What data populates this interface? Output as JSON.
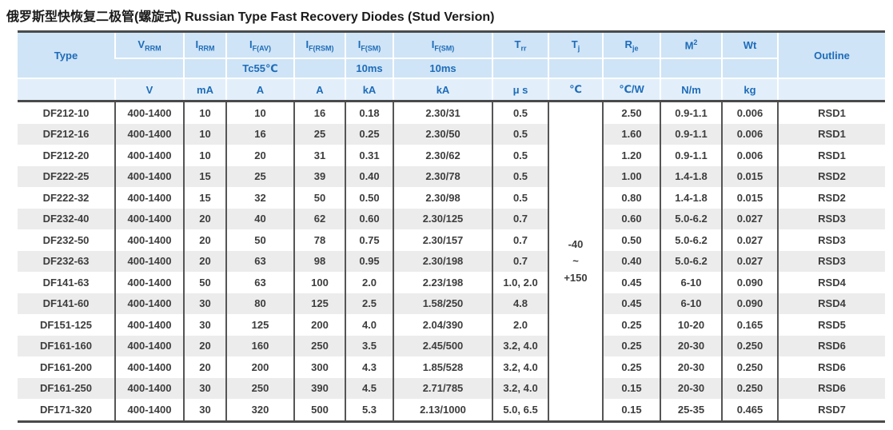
{
  "page_title": {
    "zh": "俄罗斯型快恢复二极管(螺旋式)",
    "en": " Russian Type Fast Recovery Diodes (Stud Version)"
  },
  "colors": {
    "header_bg": "#cfe4f6",
    "units_bg": "#e2effb",
    "header_text": "#1e6cb9",
    "body_text": "#3d3d3d",
    "stripe": "#ececec",
    "border_dark": "#4a4a4a"
  },
  "table": {
    "header": {
      "col1": {
        "label": "Type"
      },
      "last_col": {
        "label": "Outline"
      },
      "cells_row1": [
        {
          "base": "V",
          "sub": "RRM"
        },
        {
          "base": "I",
          "sub": "RRM"
        },
        {
          "base": "I",
          "sub": "F(AV)"
        },
        {
          "base": "I",
          "sub": "F(RSM)"
        },
        {
          "base": "I",
          "sub": "F(SM)"
        },
        {
          "base": "I",
          "sub": "F(SM)"
        },
        {
          "base": "T",
          "sub": "rr"
        },
        {
          "base": "T",
          "sub": "j"
        },
        {
          "base": "R",
          "sub": "je"
        },
        {
          "base": "M",
          "sup": "2"
        },
        {
          "base": "Wt"
        }
      ],
      "cells_row2": [
        "",
        "",
        "Tc55℃",
        "",
        "10ms",
        "10ms",
        "",
        "",
        "",
        "",
        ""
      ],
      "units": [
        "",
        "V",
        "mA",
        "A",
        "A",
        "kA",
        "kA",
        "μ s",
        "℃",
        "℃/W",
        "N/m",
        "kg",
        ""
      ]
    },
    "tj_span": {
      "lines": [
        "-40",
        "~",
        "+150"
      ]
    },
    "rows": [
      {
        "cells": [
          "DF212-10",
          "400-1400",
          "10",
          "10",
          "16",
          "0.18",
          "2.30/31",
          "0.5",
          "2.50",
          "0.9-1.1",
          "0.006",
          "RSD1"
        ]
      },
      {
        "cells": [
          "DF212-16",
          "400-1400",
          "10",
          "16",
          "25",
          "0.25",
          "2.30/50",
          "0.5",
          "1.60",
          "0.9-1.1",
          "0.006",
          "RSD1"
        ]
      },
      {
        "cells": [
          "DF212-20",
          "400-1400",
          "10",
          "20",
          "31",
          "0.31",
          "2.30/62",
          "0.5",
          "1.20",
          "0.9-1.1",
          "0.006",
          "RSD1"
        ]
      },
      {
        "cells": [
          "DF222-25",
          "400-1400",
          "15",
          "25",
          "39",
          "0.40",
          "2.30/78",
          "0.5",
          "1.00",
          "1.4-1.8",
          "0.015",
          "RSD2"
        ]
      },
      {
        "cells": [
          "DF222-32",
          "400-1400",
          "15",
          "32",
          "50",
          "0.50",
          "2.30/98",
          "0.5",
          "0.80",
          "1.4-1.8",
          "0.015",
          "RSD2"
        ]
      },
      {
        "cells": [
          "DF232-40",
          "400-1400",
          "20",
          "40",
          "62",
          "0.60",
          "2.30/125",
          "0.7",
          "0.60",
          "5.0-6.2",
          "0.027",
          "RSD3"
        ]
      },
      {
        "cells": [
          "DF232-50",
          "400-1400",
          "20",
          "50",
          "78",
          "0.75",
          "2.30/157",
          "0.7",
          "0.50",
          "5.0-6.2",
          "0.027",
          "RSD3"
        ]
      },
      {
        "cells": [
          "DF232-63",
          "400-1400",
          "20",
          "63",
          "98",
          "0.95",
          "2.30/198",
          "0.7",
          "0.40",
          "5.0-6.2",
          "0.027",
          "RSD3"
        ]
      },
      {
        "cells": [
          "DF141-63",
          "400-1400",
          "50",
          "63",
          "100",
          "2.0",
          "2.23/198",
          "1.0, 2.0",
          "0.45",
          "6-10",
          "0.090",
          "RSD4"
        ]
      },
      {
        "cells": [
          "DF141-60",
          "400-1400",
          "30",
          "80",
          "125",
          "2.5",
          "1.58/250",
          "4.8",
          "0.45",
          "6-10",
          "0.090",
          "RSD4"
        ]
      },
      {
        "cells": [
          "DF151-125",
          "400-1400",
          "30",
          "125",
          "200",
          "4.0",
          "2.04/390",
          "2.0",
          "0.25",
          "10-20",
          "0.165",
          "RSD5"
        ]
      },
      {
        "cells": [
          "DF161-160",
          "400-1400",
          "20",
          "160",
          "250",
          "3.5",
          "2.45/500",
          "3.2, 4.0",
          "0.25",
          "20-30",
          "0.250",
          "RSD6"
        ]
      },
      {
        "cells": [
          "DF161-200",
          "400-1400",
          "20",
          "200",
          "300",
          "4.3",
          "1.85/528",
          "3.2, 4.0",
          "0.25",
          "20-30",
          "0.250",
          "RSD6"
        ]
      },
      {
        "cells": [
          "DF161-250",
          "400-1400",
          "30",
          "250",
          "390",
          "4.5",
          "2.71/785",
          "3.2, 4.0",
          "0.15",
          "20-30",
          "0.250",
          "RSD6"
        ]
      },
      {
        "cells": [
          "DF171-320",
          "400-1400",
          "30",
          "320",
          "500",
          "5.3",
          "2.13/1000",
          "5.0, 6.5",
          "0.15",
          "25-35",
          "0.465",
          "RSD7"
        ]
      }
    ]
  }
}
